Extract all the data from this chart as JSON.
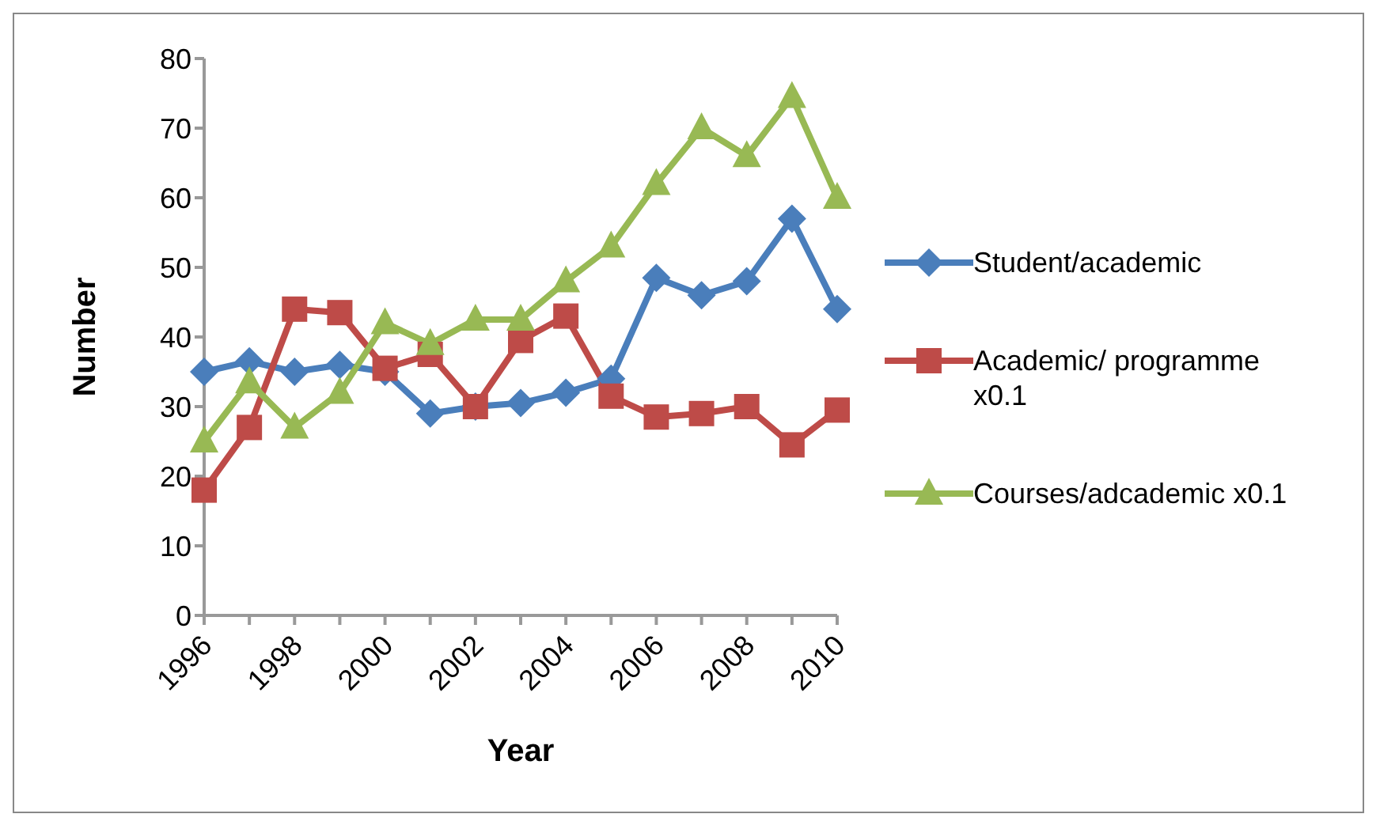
{
  "chart_data": {
    "type": "line",
    "xlabel": "Year",
    "ylabel": "Number",
    "categories": [
      "1996",
      null,
      "1998",
      null,
      "2000",
      null,
      "2002",
      null,
      "2004",
      null,
      "2006",
      null,
      "2008",
      null,
      "2010"
    ],
    "series": [
      {
        "name": "Student/academic",
        "color": "#4a7ebb",
        "marker": "diamond",
        "values": [
          35,
          36.5,
          35,
          36,
          35,
          29,
          30,
          30.5,
          32,
          34,
          48.5,
          46,
          48,
          57,
          44
        ]
      },
      {
        "name": "Academic/ programme x0.1",
        "color": "#be4b48",
        "marker": "square",
        "values": [
          18,
          27,
          44,
          43.5,
          35.5,
          37.5,
          30,
          39.5,
          43,
          31.5,
          28.5,
          29,
          30,
          24.5,
          29.5
        ]
      },
      {
        "name": "Courses/adcademic x0.1",
        "color": "#98b954",
        "marker": "triangle",
        "values": [
          25,
          33.5,
          27,
          32,
          42,
          39,
          42.5,
          42.5,
          48,
          53,
          62,
          70,
          66,
          74.5,
          60
        ]
      }
    ],
    "ylim": [
      0,
      80
    ],
    "yticks": [
      0,
      10,
      20,
      30,
      40,
      50,
      60,
      70,
      80
    ],
    "grid": false,
    "legend": "right",
    "line_style": "solid"
  }
}
